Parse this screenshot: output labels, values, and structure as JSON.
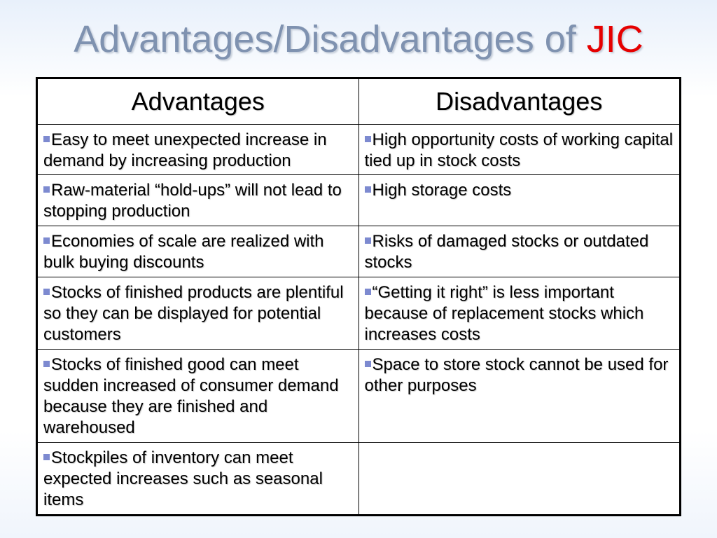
{
  "title": {
    "prefix": "Advantages/Disadvantages of ",
    "accent": "JIC",
    "accent_color": "#e60000"
  },
  "table": {
    "headers": [
      "Advantages",
      "Disadvantages"
    ],
    "bullet_icon": "square-bullet",
    "rows": [
      {
        "advantage": "Easy to meet unexpected increase in demand by increasing production",
        "disadvantage": "High opportunity costs of working capital tied up in stock costs"
      },
      {
        "advantage": "Raw-material “hold-ups” will not lead to stopping production",
        "disadvantage": "High storage costs"
      },
      {
        "advantage": "Economies of scale are realized with bulk buying discounts",
        "disadvantage": "Risks of damaged stocks or outdated stocks"
      },
      {
        "advantage": "Stocks of finished products are plentiful so they can be displayed for potential customers",
        "disadvantage": "“Getting it right” is less important because of replacement stocks which increases costs"
      },
      {
        "advantage": "Stocks of finished good can meet sudden increased of consumer demand because they are finished and warehoused",
        "disadvantage": "Space to store stock cannot be used for other purposes"
      },
      {
        "advantage": "Stockpiles of inventory can meet expected increases such as seasonal items",
        "disadvantage": ""
      }
    ]
  }
}
